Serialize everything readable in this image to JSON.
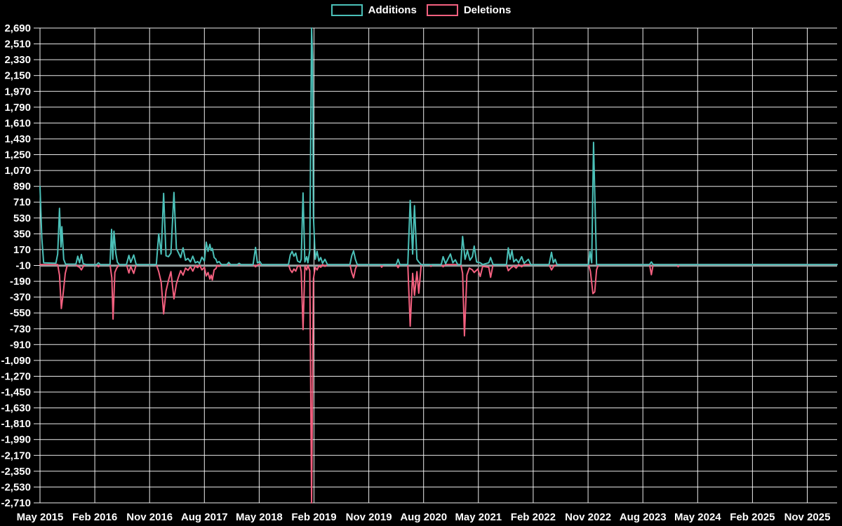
{
  "chart_data": {
    "type": "line",
    "title": "",
    "background_color": "#000000",
    "grid_color": "rgba(255,255,255,0.92)",
    "axis_line_color": "#97a2a2",
    "text_color": "#ffffff",
    "legend_position": "top",
    "x_axis": {
      "unit": "months since May 2015",
      "domain_months": [
        0,
        130.9
      ],
      "tick_step_months": 9,
      "tick_labels": [
        "May 2015",
        "Feb 2016",
        "Nov 2016",
        "Aug 2017",
        "May 2018",
        "Feb 2019",
        "Nov 2019",
        "Aug 2020",
        "May 2021",
        "Feb 2022",
        "Nov 2022",
        "Aug 2023",
        "May 2024",
        "Feb 2025",
        "Nov 2025"
      ]
    },
    "y_axis": {
      "min": -2710,
      "max": 2690,
      "tick_step": 180,
      "tick_labels": [
        "2,690",
        "2,510",
        "2,330",
        "2,150",
        "1,970",
        "1,790",
        "1,610",
        "1,430",
        "1,250",
        "1,070",
        "890",
        "710",
        "530",
        "350",
        "170",
        "-10",
        "-190",
        "-370",
        "-550",
        "-730",
        "-910",
        "-1,090",
        "-1,270",
        "-1,450",
        "-1,630",
        "-1,810",
        "-1,990",
        "-2,170",
        "-2,350",
        "-2,530",
        "-2,710"
      ]
    },
    "series": [
      {
        "name": "Additions",
        "color": "#4bc0b8",
        "points": [
          [
            0,
            890
          ],
          [
            0.3,
            300
          ],
          [
            0.6,
            20
          ],
          [
            2.6,
            15
          ],
          [
            2.9,
            120
          ],
          [
            3.2,
            640
          ],
          [
            3.45,
            200
          ],
          [
            3.6,
            430
          ],
          [
            3.9,
            60
          ],
          [
            4.2,
            5
          ],
          [
            5.9,
            5
          ],
          [
            6.2,
            95
          ],
          [
            6.5,
            20
          ],
          [
            6.8,
            115
          ],
          [
            7.1,
            10
          ],
          [
            7.6,
            0
          ],
          [
            9.3,
            0
          ],
          [
            9.6,
            20
          ],
          [
            9.9,
            0
          ],
          [
            11.5,
            0
          ],
          [
            11.75,
            400
          ],
          [
            11.95,
            60
          ],
          [
            12.15,
            380
          ],
          [
            12.45,
            130
          ],
          [
            12.7,
            30
          ],
          [
            13.0,
            0
          ],
          [
            14.2,
            0
          ],
          [
            14.6,
            105
          ],
          [
            14.9,
            25
          ],
          [
            15.4,
            110
          ],
          [
            15.8,
            0
          ],
          [
            19.1,
            0
          ],
          [
            19.5,
            350
          ],
          [
            19.9,
            120
          ],
          [
            20.3,
            810
          ],
          [
            20.7,
            100
          ],
          [
            21.1,
            90
          ],
          [
            21.5,
            130
          ],
          [
            22.0,
            820
          ],
          [
            22.4,
            180
          ],
          [
            22.7,
            140
          ],
          [
            23.1,
            80
          ],
          [
            23.5,
            190
          ],
          [
            23.9,
            50
          ],
          [
            24.3,
            70
          ],
          [
            24.7,
            30
          ],
          [
            25.1,
            95
          ],
          [
            25.5,
            20
          ],
          [
            25.9,
            35
          ],
          [
            26.2,
            10
          ],
          [
            26.6,
            85
          ],
          [
            27.0,
            40
          ],
          [
            27.3,
            255
          ],
          [
            27.6,
            150
          ],
          [
            27.9,
            230
          ],
          [
            28.1,
            160
          ],
          [
            28.3,
            185
          ],
          [
            28.6,
            80
          ],
          [
            28.9,
            60
          ],
          [
            29.1,
            20
          ],
          [
            29.4,
            35
          ],
          [
            29.8,
            0
          ],
          [
            30.7,
            0
          ],
          [
            31.0,
            25
          ],
          [
            31.3,
            0
          ],
          [
            32.4,
            0
          ],
          [
            32.7,
            15
          ],
          [
            33.0,
            0
          ],
          [
            35.0,
            0
          ],
          [
            35.4,
            195
          ],
          [
            35.7,
            20
          ],
          [
            36.1,
            35
          ],
          [
            36.4,
            0
          ],
          [
            40.8,
            0
          ],
          [
            41.1,
            110
          ],
          [
            41.4,
            150
          ],
          [
            41.7,
            95
          ],
          [
            42.0,
            130
          ],
          [
            42.3,
            40
          ],
          [
            42.7,
            25
          ],
          [
            42.9,
            60
          ],
          [
            43.2,
            815
          ],
          [
            43.5,
            30
          ],
          [
            43.8,
            90
          ],
          [
            44.0,
            20
          ],
          [
            44.3,
            160
          ],
          [
            44.6,
            2690
          ],
          [
            44.75,
            2370
          ],
          [
            44.9,
            550
          ],
          [
            45.2,
            60
          ],
          [
            45.5,
            150
          ],
          [
            45.8,
            40
          ],
          [
            46.1,
            80
          ],
          [
            46.4,
            15
          ],
          [
            46.8,
            60
          ],
          [
            47.2,
            0
          ],
          [
            50.9,
            0
          ],
          [
            51.2,
            100
          ],
          [
            51.5,
            155
          ],
          [
            51.8,
            60
          ],
          [
            52.1,
            0
          ],
          [
            58.5,
            0
          ],
          [
            58.8,
            60
          ],
          [
            59.1,
            0
          ],
          [
            60.4,
            0
          ],
          [
            60.8,
            730
          ],
          [
            61.2,
            120
          ],
          [
            61.5,
            670
          ],
          [
            61.9,
            60
          ],
          [
            62.2,
            30
          ],
          [
            62.6,
            0
          ],
          [
            65.9,
            0
          ],
          [
            66.2,
            90
          ],
          [
            66.6,
            10
          ],
          [
            67.4,
            120
          ],
          [
            67.8,
            20
          ],
          [
            68.2,
            55
          ],
          [
            68.6,
            0
          ],
          [
            69.1,
            0
          ],
          [
            69.4,
            320
          ],
          [
            69.8,
            60
          ],
          [
            70.2,
            160
          ],
          [
            70.6,
            50
          ],
          [
            71.0,
            90
          ],
          [
            71.3,
            210
          ],
          [
            71.7,
            30
          ],
          [
            72.3,
            20
          ],
          [
            72.7,
            0
          ],
          [
            73.7,
            20
          ],
          [
            74.0,
            80
          ],
          [
            74.4,
            0
          ],
          [
            76.6,
            0
          ],
          [
            76.9,
            190
          ],
          [
            77.2,
            60
          ],
          [
            77.5,
            160
          ],
          [
            77.8,
            30
          ],
          [
            78.2,
            60
          ],
          [
            78.6,
            20
          ],
          [
            79.1,
            90
          ],
          [
            79.5,
            15
          ],
          [
            80.2,
            60
          ],
          [
            80.6,
            0
          ],
          [
            83.6,
            0
          ],
          [
            84.0,
            140
          ],
          [
            84.3,
            20
          ],
          [
            84.6,
            60
          ],
          [
            84.9,
            0
          ],
          [
            90.1,
            0
          ],
          [
            90.3,
            150
          ],
          [
            90.6,
            20
          ],
          [
            90.9,
            1390
          ],
          [
            91.1,
            820
          ],
          [
            91.4,
            0
          ],
          [
            100.1,
            0
          ],
          [
            100.4,
            30
          ],
          [
            100.7,
            0
          ],
          [
            130.9,
            0
          ]
        ]
      },
      {
        "name": "Deletions",
        "color": "#f3607f",
        "points": [
          [
            0,
            0
          ],
          [
            2.9,
            0
          ],
          [
            3.2,
            -120
          ],
          [
            3.5,
            -500
          ],
          [
            3.8,
            -330
          ],
          [
            4.15,
            -100
          ],
          [
            4.5,
            0
          ],
          [
            5.9,
            0
          ],
          [
            6.2,
            -20
          ],
          [
            6.5,
            -30
          ],
          [
            6.8,
            -60
          ],
          [
            7.2,
            -10
          ],
          [
            7.6,
            0
          ],
          [
            9.3,
            0
          ],
          [
            9.6,
            -25
          ],
          [
            9.9,
            0
          ],
          [
            11.5,
            0
          ],
          [
            11.8,
            -150
          ],
          [
            12.0,
            -620
          ],
          [
            12.3,
            -90
          ],
          [
            12.6,
            -40
          ],
          [
            13.0,
            0
          ],
          [
            14.2,
            0
          ],
          [
            14.6,
            -95
          ],
          [
            14.9,
            -20
          ],
          [
            15.4,
            -100
          ],
          [
            15.8,
            0
          ],
          [
            19.1,
            0
          ],
          [
            19.5,
            -80
          ],
          [
            19.9,
            -200
          ],
          [
            20.3,
            -560
          ],
          [
            20.7,
            -300
          ],
          [
            21.1,
            -180
          ],
          [
            21.5,
            -80
          ],
          [
            22.0,
            -390
          ],
          [
            22.4,
            -220
          ],
          [
            22.7,
            -150
          ],
          [
            23.1,
            -70
          ],
          [
            23.5,
            -120
          ],
          [
            23.9,
            -40
          ],
          [
            24.3,
            -65
          ],
          [
            24.7,
            -25
          ],
          [
            25.1,
            -75
          ],
          [
            25.5,
            -15
          ],
          [
            25.9,
            -35
          ],
          [
            26.2,
            -5
          ],
          [
            26.6,
            -60
          ],
          [
            27.0,
            -30
          ],
          [
            27.3,
            -130
          ],
          [
            27.6,
            -90
          ],
          [
            27.9,
            -165
          ],
          [
            28.1,
            -120
          ],
          [
            28.3,
            -175
          ],
          [
            28.6,
            -60
          ],
          [
            28.9,
            -45
          ],
          [
            29.1,
            -10
          ],
          [
            29.4,
            -20
          ],
          [
            29.8,
            0
          ],
          [
            35.0,
            0
          ],
          [
            35.4,
            -25
          ],
          [
            35.8,
            0
          ],
          [
            40.8,
            0
          ],
          [
            41.1,
            -60
          ],
          [
            41.4,
            -90
          ],
          [
            41.7,
            -50
          ],
          [
            42.0,
            -75
          ],
          [
            42.3,
            -20
          ],
          [
            42.7,
            -15
          ],
          [
            42.9,
            -80
          ],
          [
            43.2,
            -740
          ],
          [
            43.5,
            -20
          ],
          [
            43.8,
            -60
          ],
          [
            44.0,
            -10
          ],
          [
            44.3,
            -70
          ],
          [
            44.6,
            -2710
          ],
          [
            44.9,
            -160
          ],
          [
            45.2,
            -30
          ],
          [
            45.5,
            -60
          ],
          [
            45.8,
            -15
          ],
          [
            46.1,
            -30
          ],
          [
            46.4,
            0
          ],
          [
            46.8,
            -20
          ],
          [
            47.2,
            0
          ],
          [
            50.9,
            0
          ],
          [
            51.2,
            -90
          ],
          [
            51.5,
            -150
          ],
          [
            51.8,
            -50
          ],
          [
            52.1,
            0
          ],
          [
            55.9,
            0
          ],
          [
            56.1,
            -30
          ],
          [
            56.4,
            0
          ],
          [
            58.5,
            0
          ],
          [
            58.8,
            -35
          ],
          [
            59.1,
            0
          ],
          [
            60.4,
            0
          ],
          [
            60.8,
            -700
          ],
          [
            61.2,
            -100
          ],
          [
            61.5,
            -350
          ],
          [
            61.9,
            -80
          ],
          [
            62.2,
            -325
          ],
          [
            62.6,
            0
          ],
          [
            64.0,
            0
          ],
          [
            64.2,
            -20
          ],
          [
            64.4,
            0
          ],
          [
            65.9,
            0
          ],
          [
            66.2,
            -25
          ],
          [
            66.6,
            0
          ],
          [
            69.1,
            0
          ],
          [
            69.4,
            -100
          ],
          [
            69.7,
            -810
          ],
          [
            70.1,
            -120
          ],
          [
            70.5,
            -40
          ],
          [
            71.0,
            -60
          ],
          [
            71.3,
            -90
          ],
          [
            71.9,
            -50
          ],
          [
            72.3,
            -135
          ],
          [
            72.7,
            -20
          ],
          [
            73.7,
            -30
          ],
          [
            74.0,
            -145
          ],
          [
            74.4,
            0
          ],
          [
            76.6,
            0
          ],
          [
            76.9,
            -70
          ],
          [
            77.3,
            -40
          ],
          [
            77.8,
            -15
          ],
          [
            78.2,
            -40
          ],
          [
            78.6,
            0
          ],
          [
            79.1,
            -25
          ],
          [
            79.5,
            0
          ],
          [
            83.6,
            0
          ],
          [
            84.0,
            -60
          ],
          [
            84.4,
            -15
          ],
          [
            84.9,
            0
          ],
          [
            90.1,
            0
          ],
          [
            90.4,
            -80
          ],
          [
            90.8,
            -330
          ],
          [
            91.1,
            -310
          ],
          [
            91.4,
            -60
          ],
          [
            91.7,
            0
          ],
          [
            100.1,
            0
          ],
          [
            100.4,
            -115
          ],
          [
            100.7,
            0
          ],
          [
            104.6,
            0
          ],
          [
            104.8,
            -25
          ],
          [
            105.0,
            0
          ],
          [
            130.9,
            0
          ]
        ]
      }
    ]
  }
}
